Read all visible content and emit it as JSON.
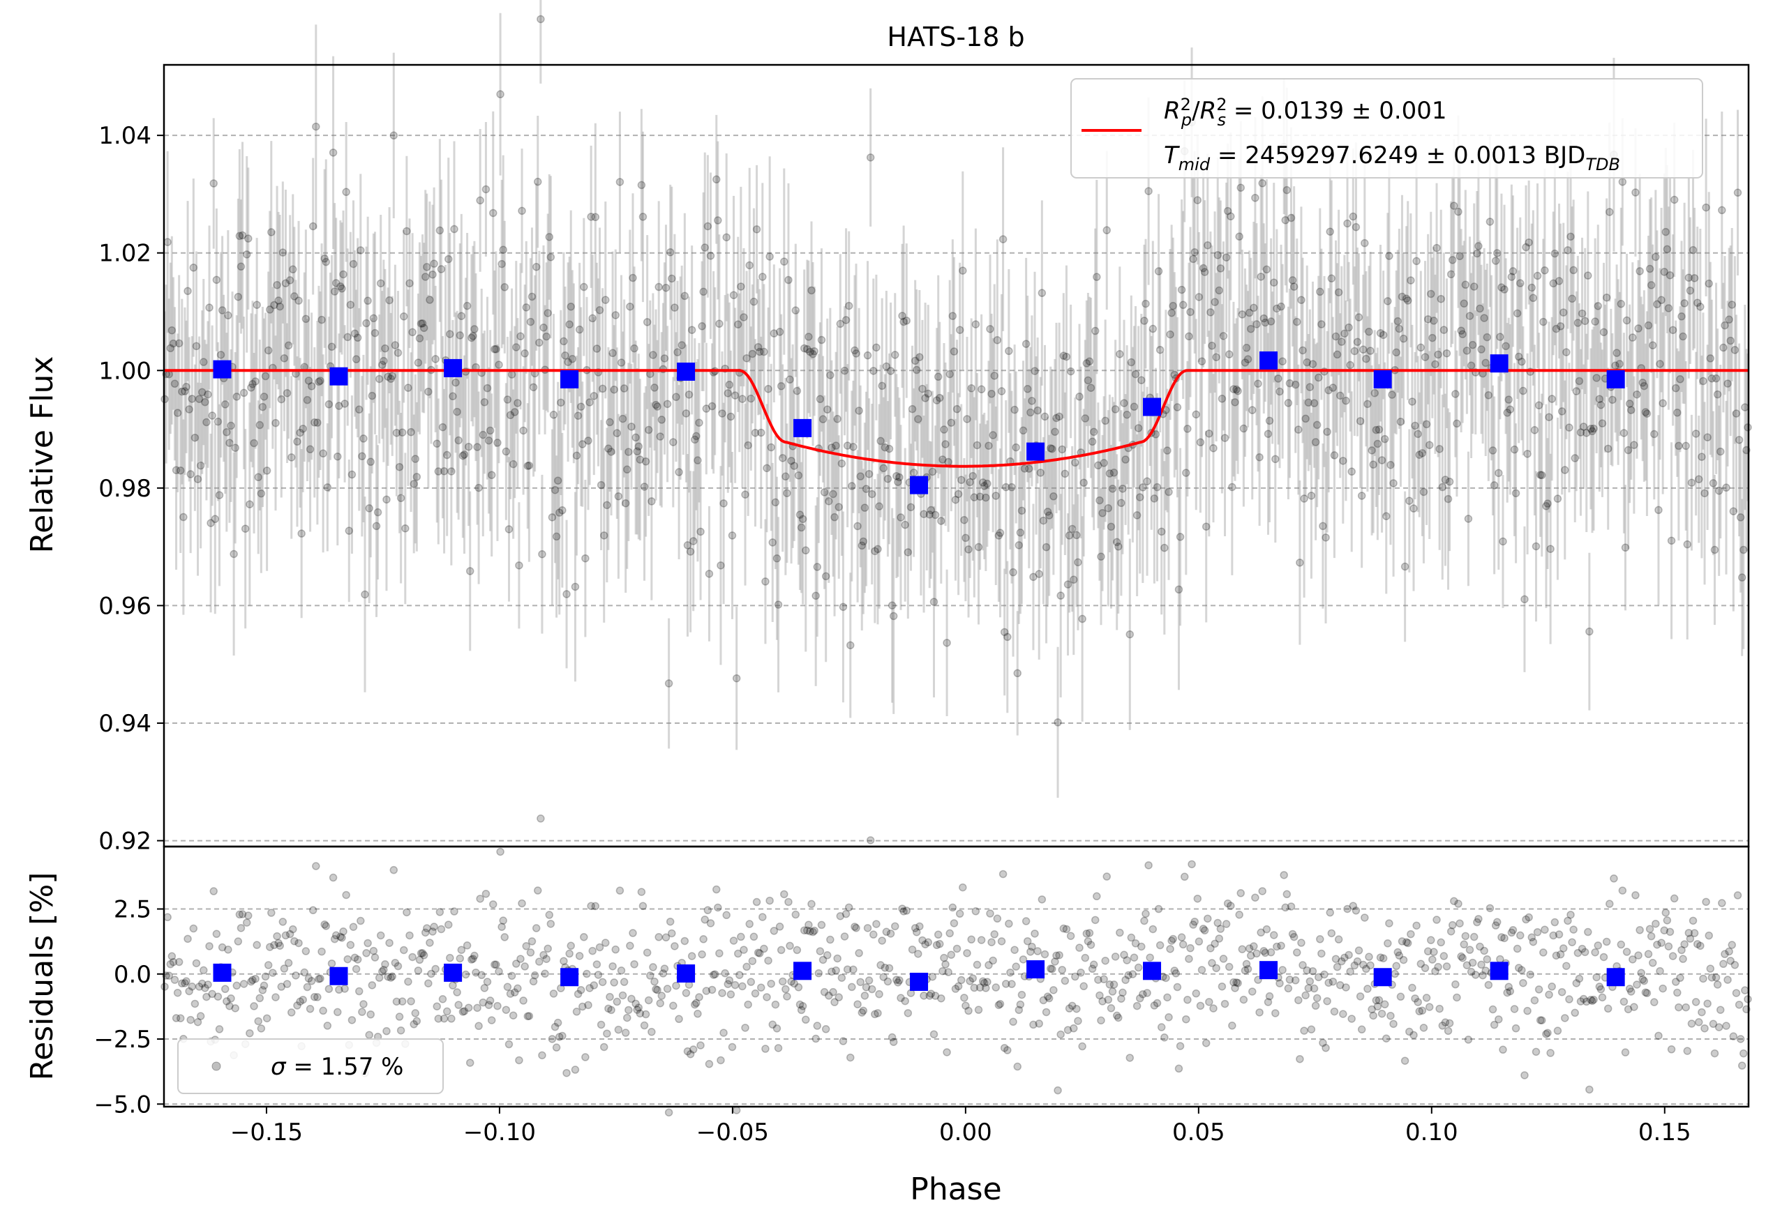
{
  "chart_data": [
    {
      "type": "scatter",
      "panel": "transit",
      "title": "HATS-18 b",
      "xlabel": "",
      "ylabel": "Relative Flux",
      "xlim": [
        -0.172,
        0.168
      ],
      "ylim": [
        0.919,
        1.052
      ],
      "x_ticks": [
        -0.15,
        -0.1,
        -0.05,
        0.0,
        0.05,
        0.1,
        0.15
      ],
      "y_ticks": [
        0.92,
        0.94,
        0.96,
        0.98,
        1.0,
        1.02,
        1.04
      ],
      "y_tick_labels": [
        "0.92",
        "0.94",
        "0.96",
        "0.98",
        "1.00",
        "1.02",
        "1.04"
      ],
      "grid": "horizontal dashed",
      "legend_position": "upper right",
      "legend": {
        "rp_rs_label": "R",
        "rp_rs_value": " = 0.0139 ± 0.001",
        "tmid_label": "T",
        "tmid_value": " = 2459297.6249 ± 0.0013 BJD",
        "p_sub": "p",
        "s_sub": "s",
        "sq": "2",
        "mid_sub": "mid",
        "tdb_sub": "TDB"
      },
      "model": {
        "name": "transit model",
        "color": "#ff0000",
        "baseline": 1.0,
        "depth_center": 0.9837,
        "ingress_start": -0.0485,
        "ingress_end": -0.0385,
        "egress_start": 0.0375,
        "egress_end": 0.0475,
        "flux_at_contact": 0.9878
      },
      "binned": {
        "color": "#0000ff",
        "x": [
          -0.1595,
          -0.1345,
          -0.11,
          -0.085,
          -0.06,
          -0.035,
          -0.01,
          0.015,
          0.04,
          0.065,
          0.0895,
          0.1145,
          0.1395
        ],
        "y": [
          1.0002,
          0.999,
          1.0004,
          0.9985,
          0.9998,
          0.9902,
          0.9805,
          0.9862,
          0.9938,
          1.0017,
          0.9985,
          1.0012,
          0.9985
        ]
      },
      "raw_points": {
        "color": "#000000",
        "n_points": 1100,
        "scatter_sigma": 0.0157,
        "typical_error": 0.014
      }
    },
    {
      "type": "scatter",
      "panel": "residuals",
      "title": "",
      "xlabel": "Phase",
      "ylabel": "Residuals [%]",
      "xlim": [
        -0.172,
        0.168
      ],
      "ylim": [
        -5.1,
        4.9
      ],
      "x_ticks": [
        -0.15,
        -0.1,
        -0.05,
        0.0,
        0.05,
        0.1,
        0.15
      ],
      "x_tick_labels": [
        "−0.15",
        "−0.10",
        "−0.05",
        "0.00",
        "0.05",
        "0.10",
        "0.15"
      ],
      "y_ticks": [
        -5.0,
        -2.5,
        0.0,
        2.5
      ],
      "y_tick_labels": [
        "−5.0",
        "−2.5",
        "0.0",
        "2.5"
      ],
      "grid": "horizontal dashed",
      "legend_position": "lower left",
      "legend": {
        "sigma_symbol": "σ",
        "sigma_text": " = 1.57 %"
      },
      "binned": {
        "color": "#0000ff",
        "x": [
          -0.1595,
          -0.1345,
          -0.11,
          -0.085,
          -0.06,
          -0.035,
          -0.01,
          0.015,
          0.04,
          0.065,
          0.0895,
          0.1145,
          0.1395
        ],
        "y": [
          0.05,
          -0.08,
          0.05,
          -0.12,
          0.02,
          0.12,
          -0.3,
          0.18,
          0.12,
          0.15,
          -0.12,
          0.12,
          -0.12
        ]
      },
      "raw_points": {
        "color": "#000000",
        "n_points": 1100,
        "scatter_sigma": 1.57
      }
    }
  ]
}
